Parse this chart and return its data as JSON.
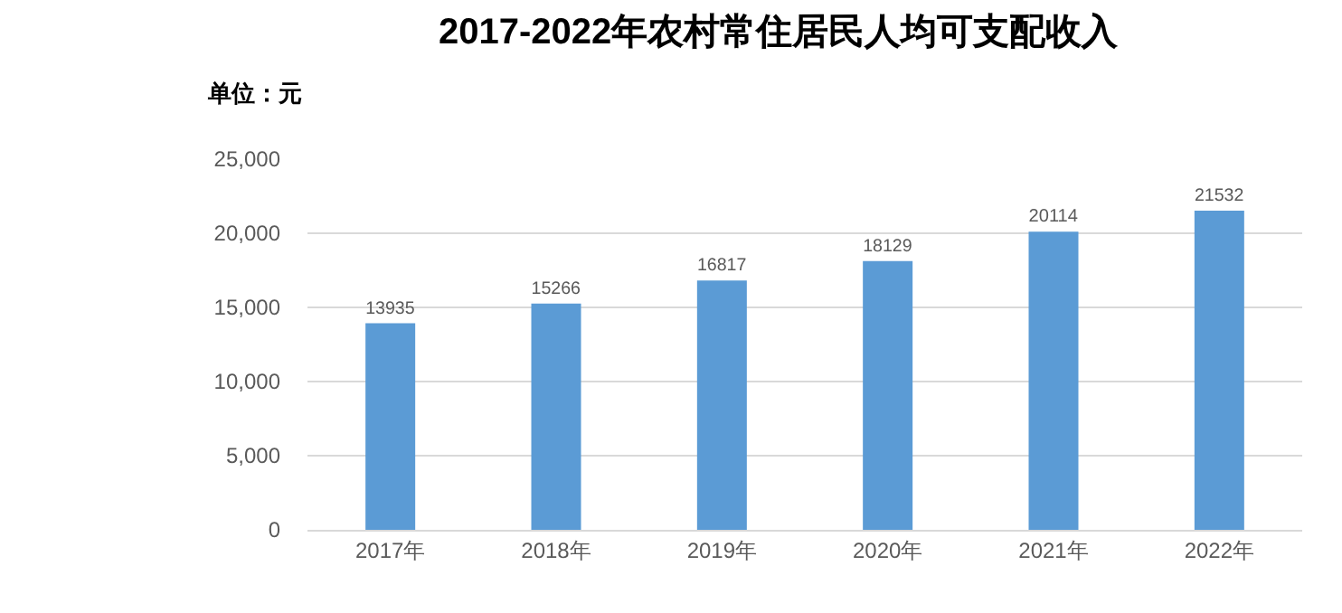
{
  "chart_data": {
    "type": "bar",
    "title": "2017-2022年农村常住居民人均可支配收入",
    "ylabel": "单位：元",
    "categories": [
      "2017年",
      "2018年",
      "2019年",
      "2020年",
      "2021年",
      "2022年"
    ],
    "values": [
      13935,
      15266,
      16817,
      18129,
      20114,
      21532
    ],
    "color": "#5b9bd5",
    "ylim": [
      0,
      25000
    ],
    "yticks": [
      0,
      {
        "value": 5000,
        "label": "5,000"
      },
      {
        "value": 10000,
        "label": "10,000"
      },
      {
        "value": 15000,
        "label": "15,000"
      },
      {
        "value": 20000,
        "label": "20,000"
      },
      {
        "value": 25000,
        "label": "25,000"
      }
    ],
    "grid": "y",
    "data_labels": true
  }
}
